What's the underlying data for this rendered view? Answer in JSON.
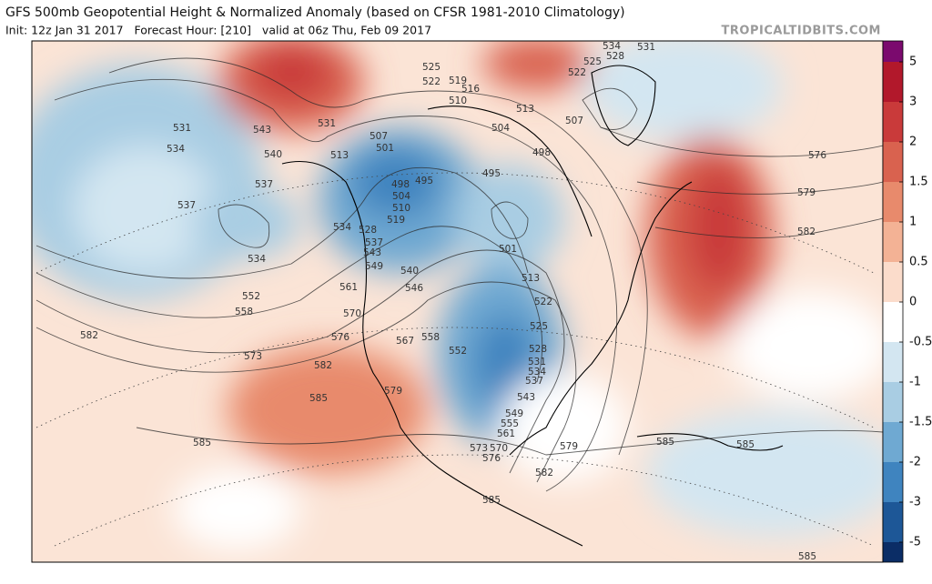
{
  "header": {
    "title": "GFS 500mb Geopotential Height & Normalized Anomaly (based on CFSR 1981-2010 Climatology)",
    "subtitle": "Init: 12z Jan 31 2017   Forecast Hour: [210]   valid at 06z Thu, Feb 09 2017",
    "site": "TROPICALTIDBITS.COM"
  },
  "colorbar": {
    "ticks": [
      5,
      3,
      2,
      1.5,
      1,
      0.5,
      0,
      -0.5,
      -1,
      -1.5,
      -2,
      -3,
      -5
    ],
    "colors": [
      "#7b0a6e",
      "#b2182b",
      "#c93a3a",
      "#d9624f",
      "#e88a6c",
      "#f3b295",
      "#fbdccb",
      "#ffffff",
      "#d3e6f1",
      "#a9cde3",
      "#6fa9d2",
      "#3f84bf",
      "#1d5797",
      "#0b2d66"
    ]
  },
  "contour_labels": [
    531,
    534,
    543,
    540,
    537,
    537,
    534,
    552,
    558,
    573,
    561,
    570,
    576,
    582,
    585,
    585,
    579,
    567,
    558,
    552,
    546,
    540,
    549,
    543,
    537,
    534,
    528,
    519,
    510,
    504,
    498,
    495,
    501,
    507,
    513,
    531,
    525,
    522,
    519,
    516,
    510,
    504,
    513,
    507,
    498,
    495,
    501,
    513,
    522,
    525,
    528,
    531,
    534,
    537,
    543,
    549,
    555,
    561,
    573,
    570,
    576,
    579,
    582,
    585,
    585,
    585,
    576,
    579,
    582,
    534,
    531,
    528,
    525,
    522,
    582,
    585
  ]
}
